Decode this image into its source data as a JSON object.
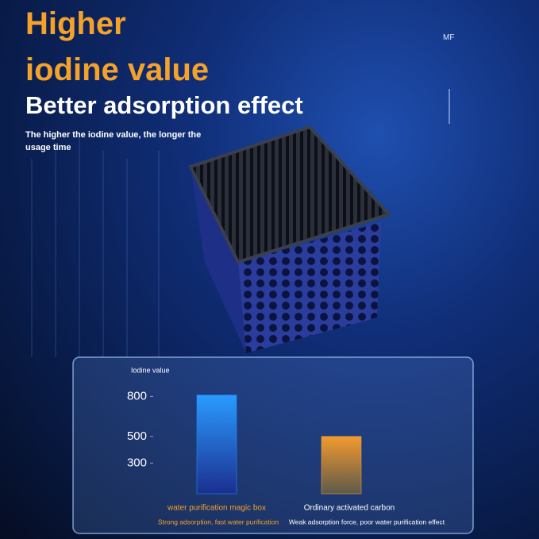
{
  "header": {
    "brand": "MF",
    "title_line1": "Higher",
    "title_line2": "iodine value",
    "headline": "Better adsorption effect",
    "subtitle": "The higher the iodine value, the longer the usage time"
  },
  "chart_data": {
    "type": "bar",
    "y_label": "Iodine value",
    "categories": [
      "water purification magic box",
      "Ordinary activated carbon"
    ],
    "descriptions": [
      "Strong adsorption, fast water purification",
      "Weak adsorption force, poor water purification effect"
    ],
    "values": [
      810,
      500
    ],
    "colors": [
      "#1e8fff",
      "#f29a2e"
    ],
    "ylim": [
      70,
      850
    ],
    "yticks": [
      300,
      500,
      800
    ],
    "grid": false
  }
}
